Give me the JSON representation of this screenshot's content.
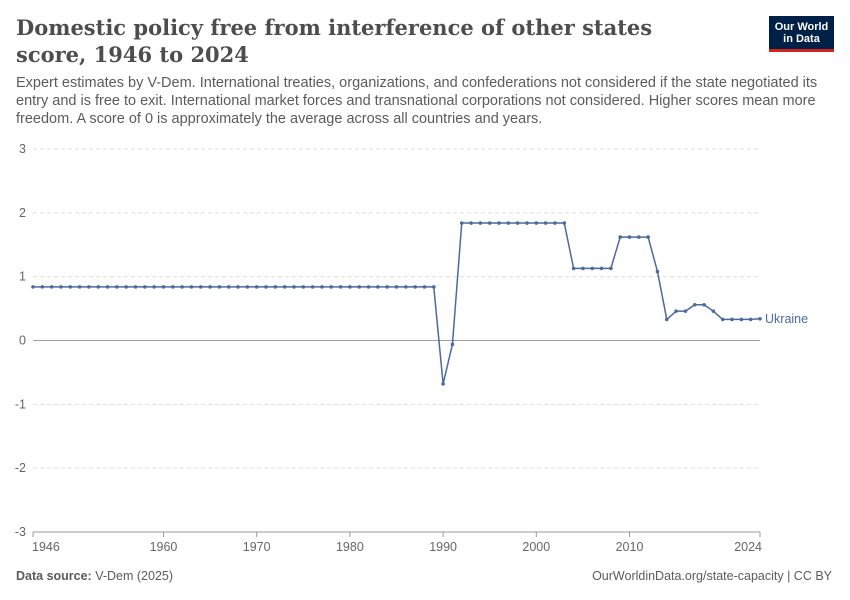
{
  "header": {
    "title": "Domestic policy free from interference of other states score, 1946 to 2024",
    "subtitle": "Expert estimates by V-Dem. International treaties, organizations, and confederations not considered if the state negotiated its entry and is free to exit. International market forces and transnational corporations not considered. Higher scores mean more freedom. A score of 0 is approximately the average across all countries and years.",
    "logo_line1": "Our World",
    "logo_line2": "in Data"
  },
  "footer": {
    "source_label": "Data source:",
    "source_value": "V-Dem (2025)",
    "url": "OurWorldinData.org/state-capacity | CC BY"
  },
  "colors": {
    "series": "#4c6a9c",
    "grid": "#dddddd",
    "zero_line": "#a1a1a1",
    "logo_bg": "#002147",
    "logo_accent": "#ce261e"
  },
  "chart_data": {
    "type": "line",
    "title": "Domestic policy free from interference of other states score, 1946 to 2024",
    "xlabel": "",
    "ylabel": "",
    "xlim": [
      1946,
      2024
    ],
    "ylim": [
      -3,
      3
    ],
    "x_ticks": [
      "1946",
      "1960",
      "1970",
      "1980",
      "1990",
      "2000",
      "2010",
      "2024"
    ],
    "x_tick_values": [
      1946,
      1960,
      1970,
      1980,
      1990,
      2000,
      2010,
      2024
    ],
    "y_ticks": [
      "3",
      "2",
      "1",
      "0",
      "-1",
      "-2",
      "-3"
    ],
    "y_tick_values": [
      3,
      2,
      1,
      0,
      -1,
      -2,
      -3
    ],
    "grid": "horizontal dashed",
    "legend": "label at line end",
    "series": [
      {
        "name": "Ukraine",
        "x": [
          1946,
          1947,
          1948,
          1949,
          1950,
          1951,
          1952,
          1953,
          1954,
          1955,
          1956,
          1957,
          1958,
          1959,
          1960,
          1961,
          1962,
          1963,
          1964,
          1965,
          1966,
          1967,
          1968,
          1969,
          1970,
          1971,
          1972,
          1973,
          1974,
          1975,
          1976,
          1977,
          1978,
          1979,
          1980,
          1981,
          1982,
          1983,
          1984,
          1985,
          1986,
          1987,
          1988,
          1989,
          1990,
          1991,
          1992,
          1993,
          1994,
          1995,
          1996,
          1997,
          1998,
          1999,
          2000,
          2001,
          2002,
          2003,
          2004,
          2005,
          2006,
          2007,
          2008,
          2009,
          2010,
          2011,
          2012,
          2013,
          2014,
          2015,
          2016,
          2017,
          2018,
          2019,
          2020,
          2021,
          2022,
          2023,
          2024
        ],
        "values": [
          0.84,
          0.84,
          0.84,
          0.84,
          0.84,
          0.84,
          0.84,
          0.84,
          0.84,
          0.84,
          0.84,
          0.84,
          0.84,
          0.84,
          0.84,
          0.84,
          0.84,
          0.84,
          0.84,
          0.84,
          0.84,
          0.84,
          0.84,
          0.84,
          0.84,
          0.84,
          0.84,
          0.84,
          0.84,
          0.84,
          0.84,
          0.84,
          0.84,
          0.84,
          0.84,
          0.84,
          0.84,
          0.84,
          0.84,
          0.84,
          0.84,
          0.84,
          0.84,
          0.84,
          -0.68,
          -0.06,
          1.84,
          1.84,
          1.84,
          1.84,
          1.84,
          1.84,
          1.84,
          1.84,
          1.84,
          1.84,
          1.84,
          1.84,
          1.13,
          1.13,
          1.13,
          1.13,
          1.13,
          1.62,
          1.62,
          1.62,
          1.62,
          1.08,
          0.33,
          0.46,
          0.46,
          0.56,
          0.56,
          0.46,
          0.33,
          0.33,
          0.33,
          0.33,
          0.34
        ]
      }
    ]
  }
}
